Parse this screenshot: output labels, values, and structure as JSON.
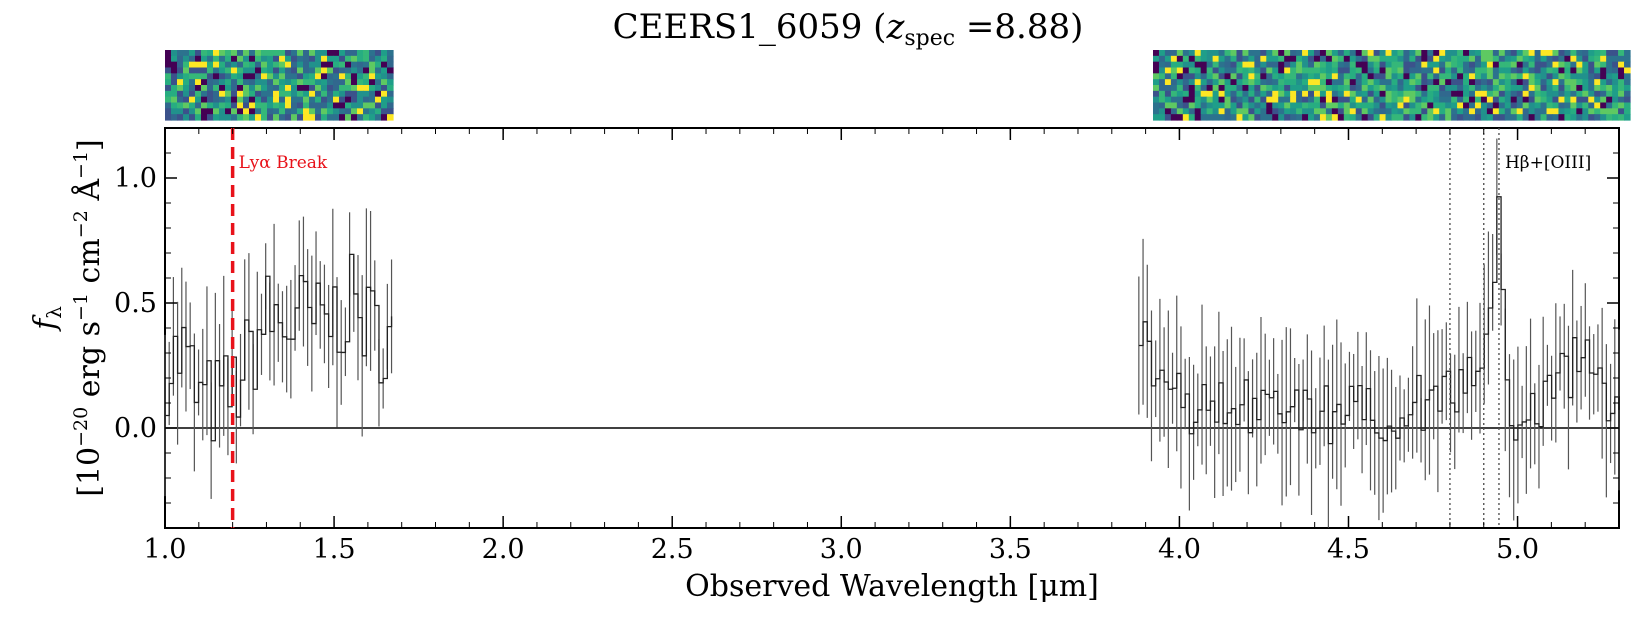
{
  "chart_data": {
    "type": "line",
    "title": "CEERS1_6059 (",
    "title_z": "z",
    "title_sub": "spec",
    "title_tail": " =8.88)",
    "xlabel": "Observed Wavelength [μm]",
    "ylabel_top": "f",
    "ylabel_sub": "λ",
    "ylabel_bottom": "[10",
    "ylabel_exp1": "−20",
    "ylabel_mid1": " erg s",
    "ylabel_exp2": "−1",
    "ylabel_mid2": " cm",
    "ylabel_exp3": "−2",
    "ylabel_mid3": " Å",
    "ylabel_exp4": "−1",
    "ylabel_end": "]",
    "xlim": [
      1.0,
      5.3
    ],
    "ylim": [
      -0.4,
      1.2
    ],
    "xticks": [
      1.0,
      1.5,
      2.0,
      2.5,
      3.0,
      3.5,
      4.0,
      4.5,
      5.0
    ],
    "xtick_labels": [
      "1.0",
      "1.5",
      "2.0",
      "2.5",
      "3.0",
      "3.5",
      "4.0",
      "4.5",
      "5.0"
    ],
    "yticks": [
      0.0,
      0.5,
      1.0
    ],
    "ytick_labels": [
      "0.0",
      "0.5",
      "1.0"
    ],
    "lya_break": {
      "x": 1.2,
      "label": "Lyα Break",
      "color": "#e8121a"
    },
    "line_markers": {
      "x": [
        4.8,
        4.9,
        4.945
      ],
      "label": "Hβ+[OIII]"
    },
    "zero_line": 0.0,
    "segments": [
      {
        "name": "",
        "x_start": 1.0,
        "x_end": 1.67,
        "anchors_x": [
          1.0,
          1.05,
          1.1,
          1.15,
          1.2,
          1.25,
          1.3,
          1.35,
          1.4,
          1.45,
          1.5,
          1.55,
          1.6,
          1.67
        ],
        "anchors_y": [
          0.25,
          0.3,
          0.1,
          0.1,
          0.15,
          0.3,
          0.45,
          0.4,
          0.45,
          0.4,
          0.45,
          0.5,
          0.4,
          0.35
        ],
        "noise": 0.2,
        "seed": 7
      },
      {
        "name": "",
        "x_start": 3.88,
        "x_end": 5.3,
        "anchors_x": [
          3.88,
          3.92,
          4.0,
          4.2,
          4.4,
          4.6,
          4.7,
          4.8,
          4.88,
          4.92,
          4.945,
          4.96,
          5.0,
          5.1,
          5.2,
          5.3
        ],
        "anchors_y": [
          0.45,
          0.12,
          0.1,
          0.08,
          0.05,
          0.05,
          0.1,
          0.15,
          0.3,
          0.5,
          1.0,
          0.1,
          0.0,
          0.15,
          0.3,
          0.05
        ],
        "noise": 0.12,
        "seed": 13
      }
    ],
    "colors": {
      "line": "#222222",
      "errorbar": "#555555",
      "break": "#e8121a"
    }
  }
}
